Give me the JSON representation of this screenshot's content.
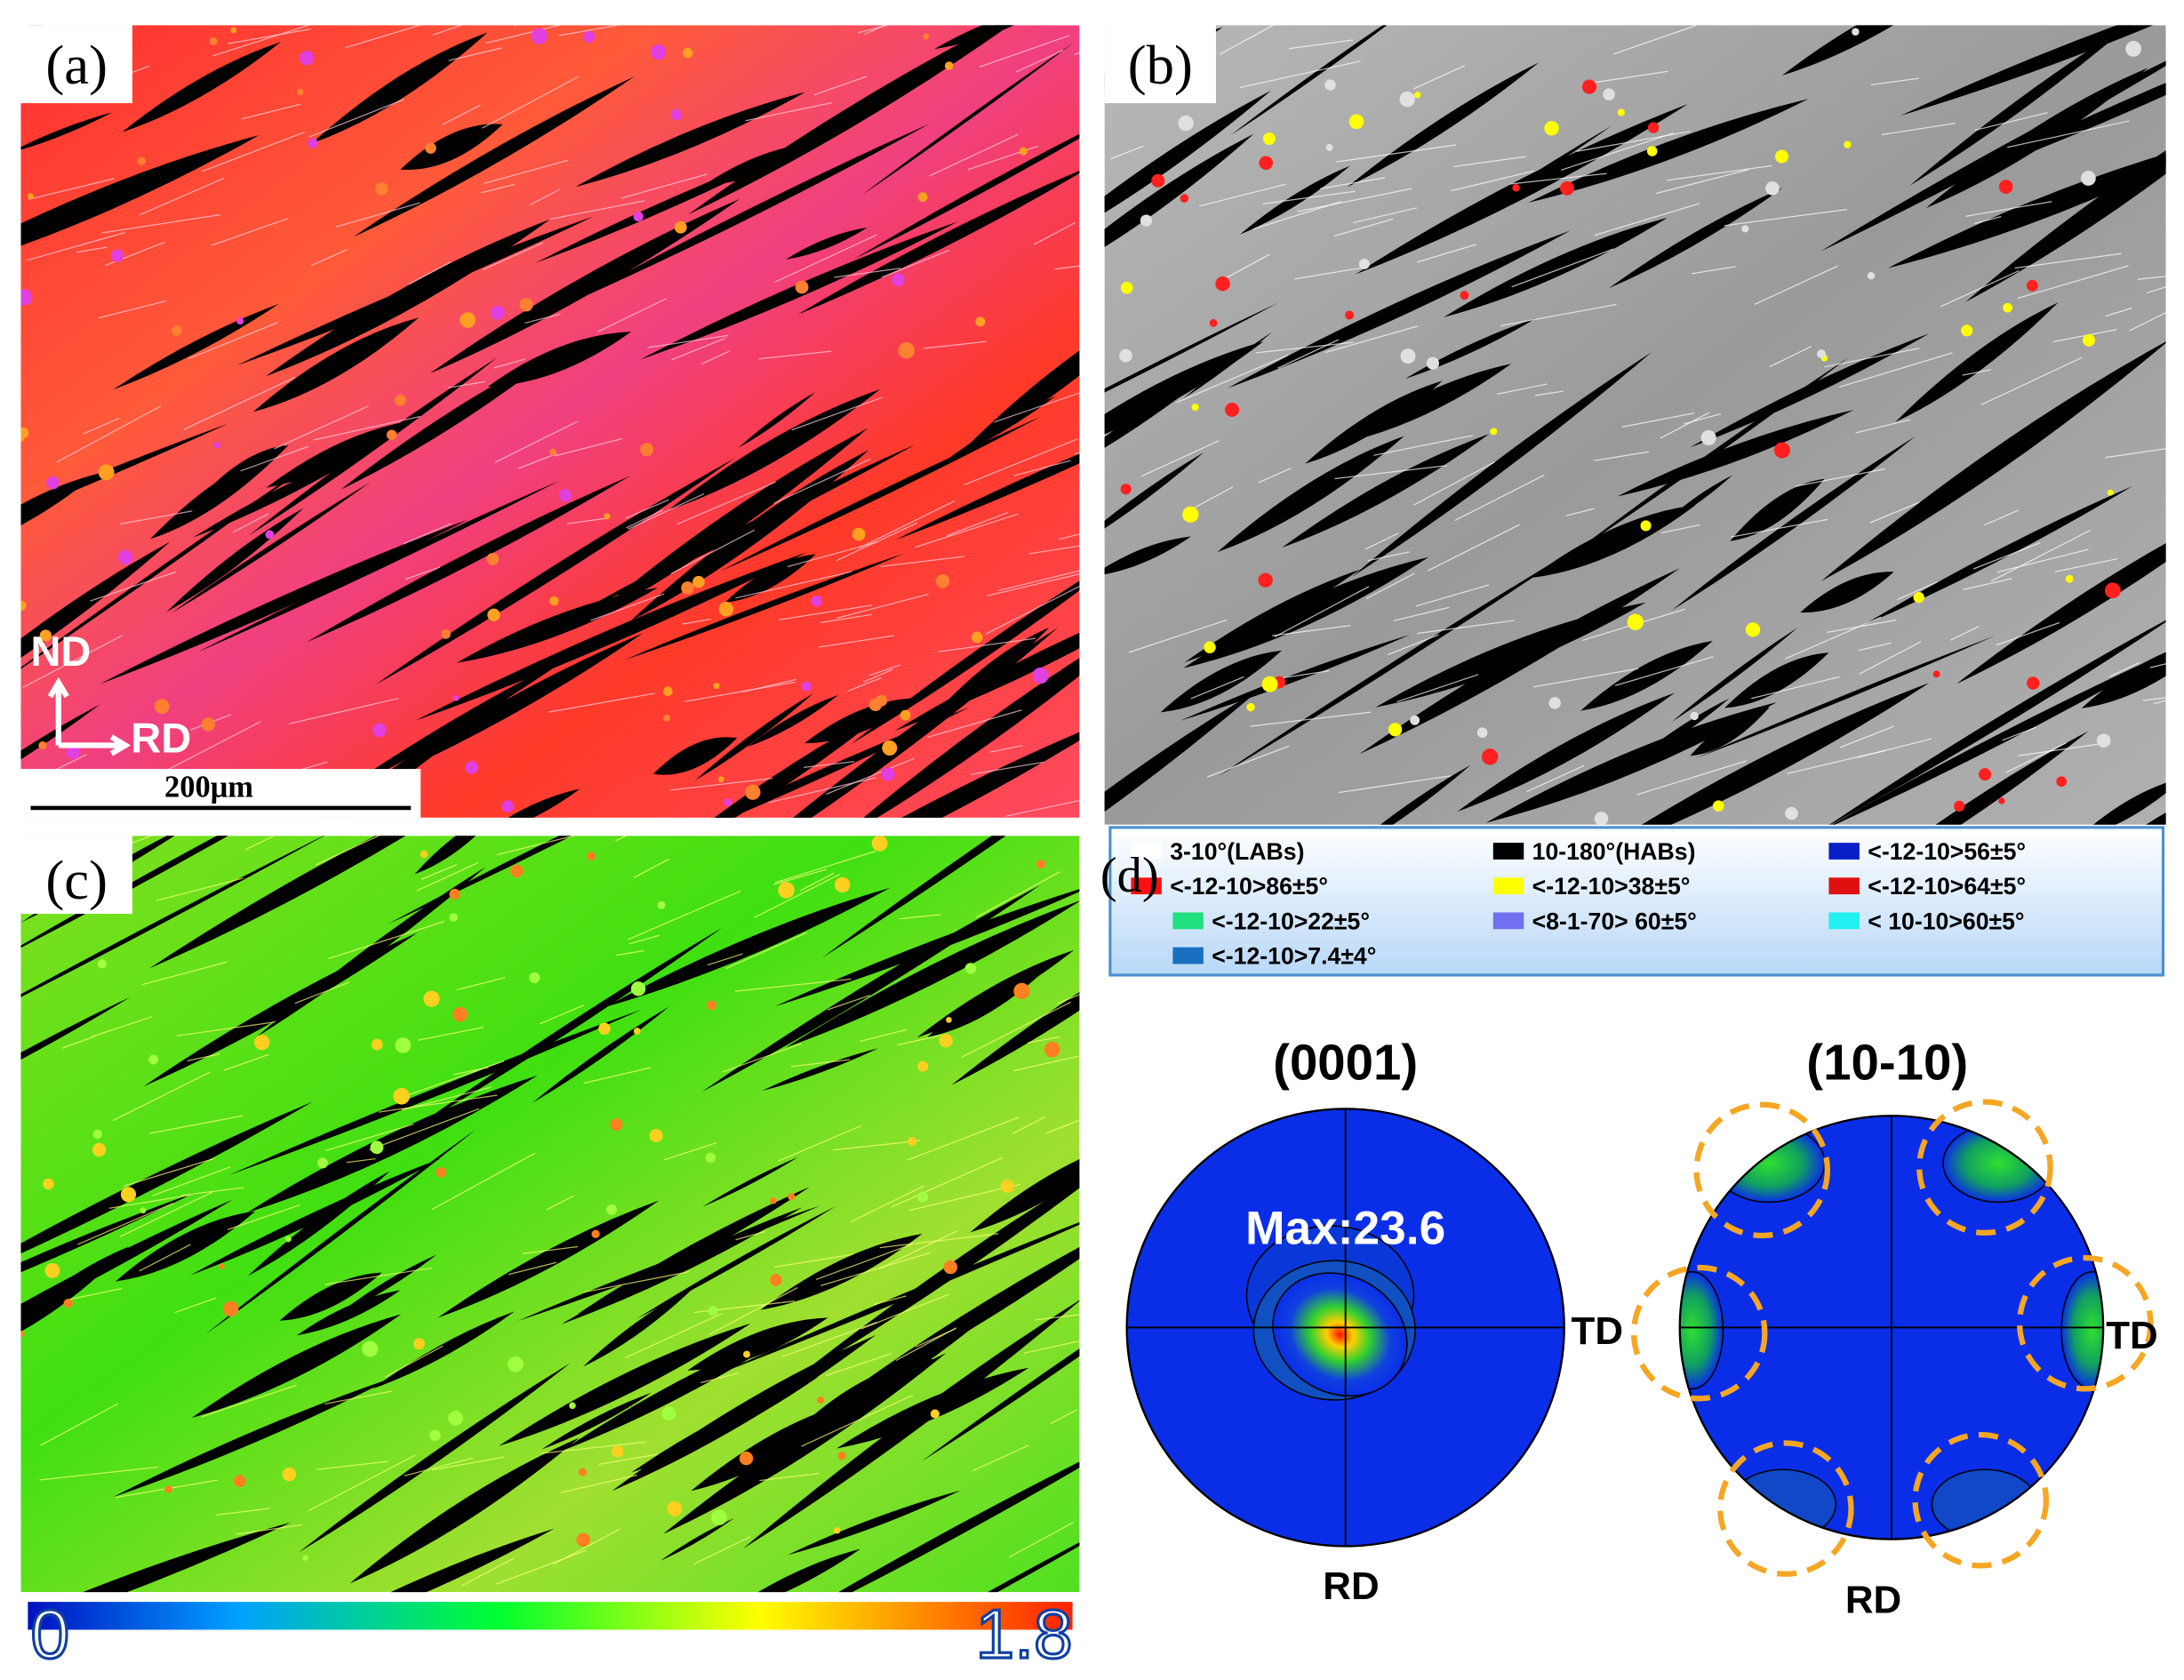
{
  "panels": {
    "a": {
      "label": "(a)",
      "nd": "ND",
      "rd": "RD",
      "scale_bar": "200μm"
    },
    "b": {
      "label": "(b)"
    },
    "c": {
      "label": "(c)",
      "colorbar": {
        "min": 0,
        "max": 1.8
      }
    },
    "d": {
      "label": "(d)",
      "legend": [
        {
          "label": "3-10°(LABs)",
          "color": "#ffffff"
        },
        {
          "label": "10-180°(HABs)",
          "color": "#000000"
        },
        {
          "label": "<-12-10>56±5°",
          "color": "#0a1ec8"
        },
        {
          "label": "<-12-10>86±5°",
          "color": "#ff1010"
        },
        {
          "label": "<-12-10>38±5°",
          "color": "#ffff00"
        },
        {
          "label": "<-12-10>64±5°",
          "color": "#e01010"
        },
        {
          "label": "<-12-10>22±5°",
          "color": "#20e080"
        },
        {
          "label": "<8-1-70> 60±5°",
          "color": "#7070f0"
        },
        {
          "label": "< 10-10>60±5°",
          "color": "#20f0f0"
        },
        {
          "label": "<-12-10>7.4±4°",
          "color": "#1a70c0"
        }
      ],
      "pole_figures": [
        {
          "title": "(0001)",
          "max_label": "Max:23.6",
          "td": "TD",
          "rd": "RD"
        },
        {
          "title": "(10-10)",
          "td": "TD",
          "rd": "RD"
        }
      ]
    }
  }
}
